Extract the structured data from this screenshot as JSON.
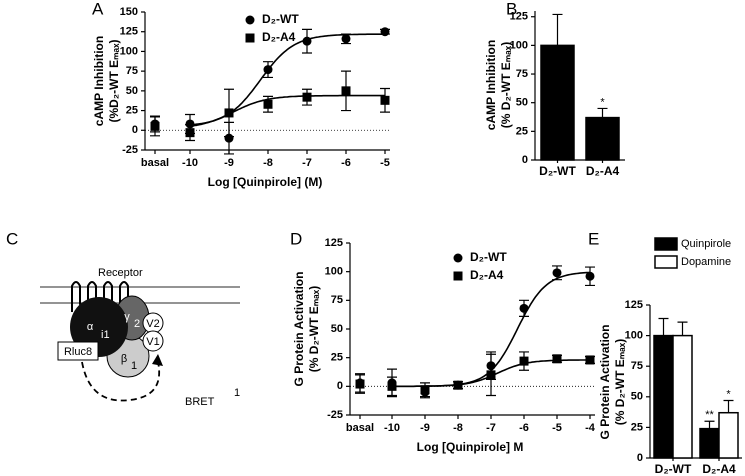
{
  "chart_data": [
    {
      "panel": "A",
      "type": "dose-response",
      "ylabel": [
        "cAMP Inhibition",
        "(%D₂-WT Eₘₐₓ)"
      ],
      "xlabel": "Log [Quinpirole] (M)",
      "basal_label": "basal",
      "xlim": [
        -10,
        -5
      ],
      "xticks": [
        -10,
        -9,
        -8,
        -7,
        -6,
        -5
      ],
      "ylim": [
        -25,
        150
      ],
      "yticks": [
        -25,
        0,
        25,
        50,
        75,
        100,
        125,
        150
      ],
      "zero_line": true,
      "series": [
        {
          "name": "D₂-WT",
          "marker": "circle",
          "color": "#000000",
          "basal": 8,
          "basal_error": 10,
          "x": [
            -10,
            -9,
            -8,
            -7,
            -6,
            -5
          ],
          "values": [
            8,
            -10,
            77,
            113,
            116,
            125
          ],
          "errors": [
            12,
            20,
            10,
            15,
            6,
            3
          ],
          "fit": {
            "bottom": 5,
            "top": 122,
            "log_ec50": -8.2
          }
        },
        {
          "name": "D₂-A4",
          "marker": "square",
          "color": "#000000",
          "basal": 5,
          "basal_error": 12,
          "x": [
            -10,
            -9,
            -8,
            -7,
            -6,
            -5
          ],
          "values": [
            -3,
            22,
            33,
            42,
            50,
            38
          ],
          "errors": [
            10,
            30,
            10,
            10,
            25,
            15
          ],
          "fit": {
            "bottom": 2,
            "top": 44,
            "log_ec50": -8.9
          }
        }
      ]
    },
    {
      "panel": "B",
      "type": "bar",
      "ylabel": [
        "cAMP Inhibition",
        "(% D₂-WT Eₘₐₓ)"
      ],
      "categories": [
        "D₂-WT",
        "D₂-A4"
      ],
      "ylim": [
        0,
        130
      ],
      "yticks": [
        0,
        25,
        50,
        75,
        100,
        125
      ],
      "series": [
        {
          "name": "cAMP Inhibition",
          "color": "#000000",
          "values": [
            100,
            37
          ],
          "errors": [
            27,
            8
          ],
          "annotations": [
            null,
            "*"
          ]
        }
      ]
    },
    {
      "panel": "D",
      "type": "dose-response",
      "ylabel": [
        "G Protein Activation",
        "(% D₂-WT Eₘₐₓ)"
      ],
      "xlabel": "Log [Quinpirole] M",
      "basal_label": "basal",
      "xlim": [
        -10,
        -4
      ],
      "xticks": [
        -10,
        -9,
        -8,
        -7,
        -6,
        -5,
        -4
      ],
      "ylim": [
        -25,
        125
      ],
      "yticks": [
        -25,
        0,
        25,
        50,
        75,
        100,
        125
      ],
      "zero_line": true,
      "series": [
        {
          "name": "D₂-WT",
          "marker": "circle",
          "color": "#000000",
          "basal": 3,
          "basal_error": 8,
          "x": [
            -10,
            -9,
            -8,
            -7,
            -6,
            -5,
            -4
          ],
          "values": [
            3,
            -5,
            1,
            18,
            68,
            99,
            96
          ],
          "errors": [
            12,
            5,
            3,
            12,
            7,
            6,
            8
          ],
          "fit": {
            "bottom": 0,
            "top": 100,
            "log_ec50": -6.2
          }
        },
        {
          "name": "D₂-A4",
          "marker": "square",
          "color": "#000000",
          "basal": 2,
          "basal_error": 8,
          "x": [
            -10,
            -9,
            -8,
            -7,
            -6,
            -5,
            -4
          ],
          "values": [
            0,
            -3,
            1,
            10,
            22,
            24,
            23
          ],
          "errors": [
            8,
            6,
            3,
            18,
            8,
            3,
            3
          ],
          "fit": {
            "bottom": 0,
            "top": 23,
            "log_ec50": -6.8
          }
        }
      ]
    },
    {
      "panel": "E",
      "type": "bar",
      "ylabel": [
        "G Protein Activation",
        "(% D₂-WT Eₘₐₓ)"
      ],
      "categories": [
        "D₂-WT",
        "D₂-A4"
      ],
      "ylim": [
        0,
        125
      ],
      "yticks": [
        0,
        25,
        50,
        75,
        100,
        125
      ],
      "legend": "top",
      "series": [
        {
          "name": "Quinpirole",
          "color": "#000000",
          "values": [
            100,
            24
          ],
          "errors": [
            14,
            6
          ],
          "annotations": [
            null,
            "**"
          ]
        },
        {
          "name": "Dopamine",
          "color": "#ffffff",
          "values": [
            100,
            37
          ],
          "errors": [
            11,
            10
          ],
          "annotations": [
            null,
            "*"
          ]
        }
      ]
    }
  ],
  "diagram": {
    "panel": "C",
    "receptor": "Receptor",
    "alpha": "α",
    "alpha_sub": "i1",
    "gamma": "γ",
    "gamma_sub": "2",
    "beta": "β",
    "beta_sub": "1",
    "v2": "V2",
    "v1": "V1",
    "rluc": "Rluc8",
    "bret": "BRET",
    "bret_sup": "1"
  }
}
